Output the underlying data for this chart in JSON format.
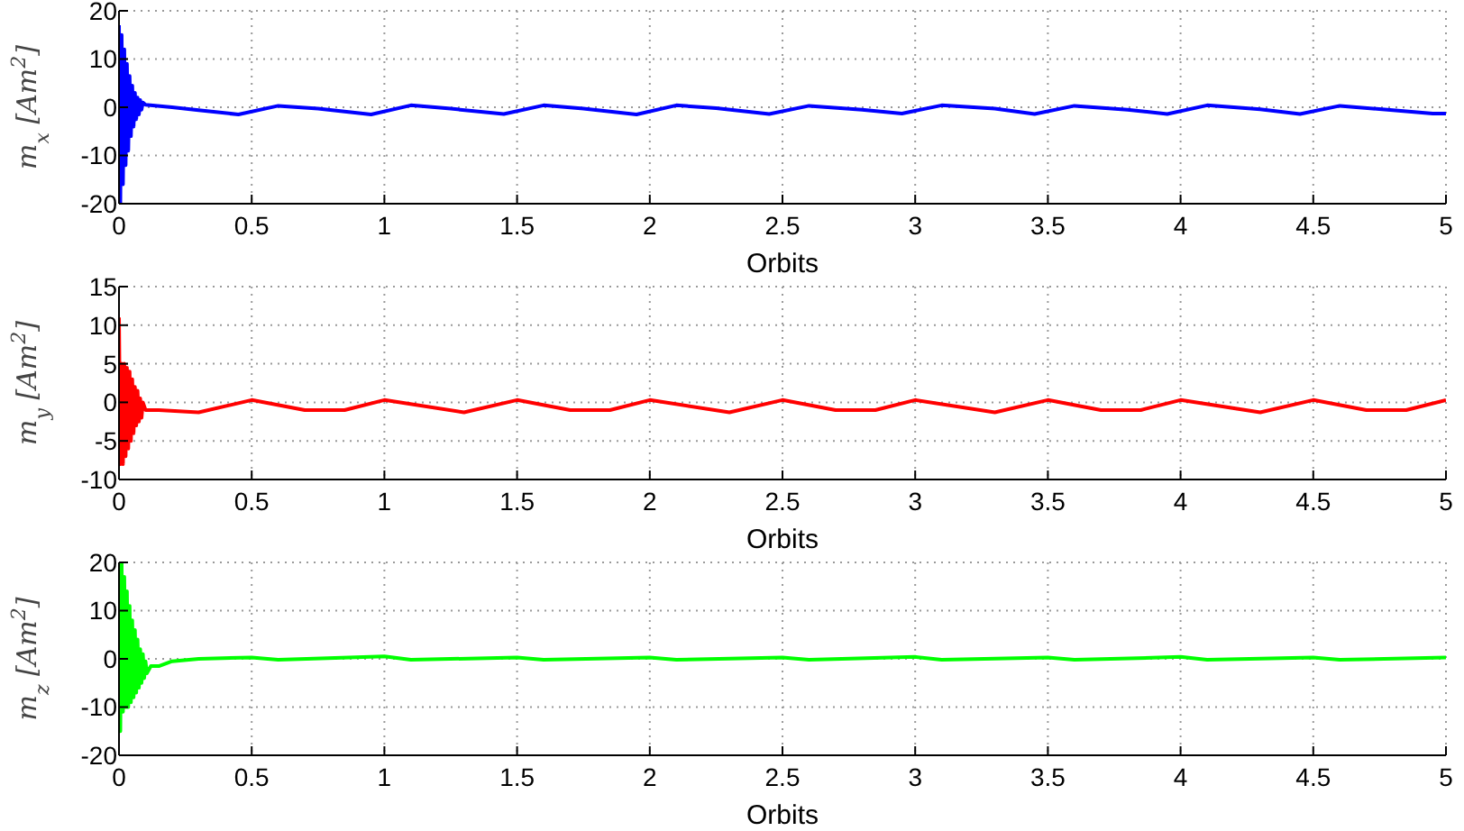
{
  "chart_data": [
    {
      "type": "line",
      "xlabel": "Orbits",
      "ylabel": "m$_{x}$ [Am$^{2}$]",
      "xlim": [
        0,
        5
      ],
      "xticks": [
        0,
        0.5,
        1,
        1.5,
        2,
        2.5,
        3,
        3.5,
        4,
        4.5,
        5
      ],
      "ylim": [
        -20,
        20
      ],
      "yticks": [
        -20,
        -10,
        0,
        10,
        20
      ],
      "grid": true,
      "series": [
        {
          "color": "#0000ff",
          "x": [
            0,
            0.005,
            0.01,
            0.015,
            0.02,
            0.025,
            0.03,
            0.035,
            0.04,
            0.045,
            0.05,
            0.055,
            0.06,
            0.065,
            0.07,
            0.075,
            0.08,
            0.085,
            0.09,
            0.1,
            0.2,
            0.3,
            0.45,
            0.6,
            0.75,
            0.95,
            1.1,
            1.25,
            1.45,
            1.6,
            1.75,
            1.95,
            2.1,
            2.25,
            2.45,
            2.6,
            2.8,
            2.95,
            3.1,
            3.3,
            3.45,
            3.6,
            3.8,
            3.95,
            4.1,
            4.3,
            4.45,
            4.6,
            4.8,
            4.95,
            5
          ],
          "values": [
            17,
            -20,
            15,
            -16,
            12,
            -12,
            9,
            -9,
            6.5,
            -6,
            4.5,
            -4,
            3,
            -2.5,
            2,
            -1.5,
            1.5,
            -0.5,
            1,
            0.5,
            0,
            -0.6,
            -1.5,
            0.3,
            -0.3,
            -1.5,
            0.4,
            -0.3,
            -1.4,
            0.4,
            -0.3,
            -1.5,
            0.4,
            -0.2,
            -1.4,
            0.3,
            -0.5,
            -1.3,
            0.4,
            -0.3,
            -1.4,
            0.3,
            -0.5,
            -1.4,
            0.4,
            -0.4,
            -1.4,
            0.3,
            -0.6,
            -1.3,
            -1.3
          ]
        }
      ]
    },
    {
      "type": "line",
      "xlabel": "Orbits",
      "ylabel": "m$_{y}$ [Am$^{2}$]",
      "xlim": [
        0,
        5
      ],
      "xticks": [
        0,
        0.5,
        1,
        1.5,
        2,
        2.5,
        3,
        3.5,
        4,
        4.5,
        5
      ],
      "ylim": [
        -10,
        15
      ],
      "yticks": [
        -10,
        -5,
        0,
        5,
        10,
        15
      ],
      "grid": true,
      "series": [
        {
          "color": "#ff0000",
          "x": [
            0,
            0.005,
            0.01,
            0.015,
            0.02,
            0.025,
            0.03,
            0.035,
            0.04,
            0.045,
            0.05,
            0.055,
            0.06,
            0.065,
            0.07,
            0.075,
            0.08,
            0.085,
            0.09,
            0.1,
            0.15,
            0.3,
            0.5,
            0.7,
            0.85,
            1,
            1.3,
            1.5,
            1.7,
            1.85,
            2,
            2.3,
            2.5,
            2.7,
            2.85,
            3,
            3.3,
            3.5,
            3.7,
            3.85,
            4,
            4.3,
            4.5,
            4.7,
            4.85,
            5
          ],
          "values": [
            11,
            -8,
            5,
            -8,
            5,
            -7,
            4.5,
            -6,
            4,
            -5,
            3,
            -4,
            2,
            -3,
            1.5,
            -2.5,
            0.5,
            -2,
            0,
            -1,
            -1,
            -1.3,
            0.3,
            -1,
            -1,
            0.3,
            -1.3,
            0.3,
            -1,
            -1,
            0.3,
            -1.3,
            0.3,
            -1,
            -1,
            0.3,
            -1.3,
            0.3,
            -1,
            -1,
            0.3,
            -1.3,
            0.3,
            -1,
            -1,
            0.3
          ]
        }
      ]
    },
    {
      "type": "line",
      "xlabel": "Orbits",
      "ylabel": "m$_{z}$ [Am$^{2}$]",
      "xlim": [
        0,
        5
      ],
      "xticks": [
        0,
        0.5,
        1,
        1.5,
        2,
        2.5,
        3,
        3.5,
        4,
        4.5,
        5
      ],
      "ylim": [
        -20,
        20
      ],
      "yticks": [
        -20,
        -10,
        0,
        10,
        20
      ],
      "grid": true,
      "series": [
        {
          "color": "#00ff00",
          "x": [
            0,
            0.005,
            0.01,
            0.015,
            0.02,
            0.025,
            0.03,
            0.035,
            0.04,
            0.045,
            0.05,
            0.055,
            0.06,
            0.065,
            0.07,
            0.075,
            0.08,
            0.085,
            0.09,
            0.095,
            0.1,
            0.105,
            0.12,
            0.15,
            0.2,
            0.3,
            0.5,
            0.6,
            1,
            1.1,
            1.5,
            1.6,
            2,
            2.1,
            2.5,
            2.6,
            3,
            3.1,
            3.5,
            3.6,
            4,
            4.1,
            4.5,
            4.6,
            5
          ],
          "values": [
            20,
            -15,
            20,
            -11,
            17,
            -10,
            14,
            -10,
            11,
            -9,
            8,
            -8,
            6,
            -7,
            4,
            -6,
            2,
            -5,
            1,
            -4,
            -0.5,
            -3,
            -1.5,
            -1.5,
            -0.5,
            0,
            0.3,
            -0.2,
            0.5,
            -0.2,
            0.3,
            -0.2,
            0.3,
            -0.2,
            0.3,
            -0.2,
            0.4,
            -0.2,
            0.3,
            -0.2,
            0.4,
            -0.2,
            0.3,
            -0.2,
            0.3
          ]
        }
      ]
    }
  ]
}
